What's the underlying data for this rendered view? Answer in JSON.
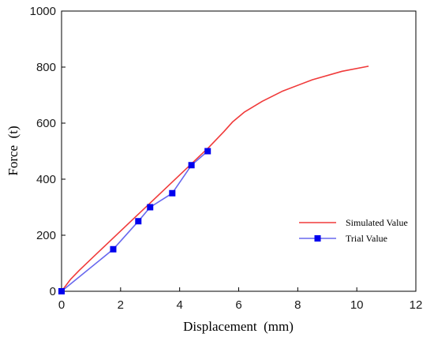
{
  "chart_data": {
    "type": "line",
    "title": "",
    "xlabel": "Displacement  (mm)",
    "ylabel": "Force  (t)",
    "xlim": [
      0,
      12
    ],
    "ylim": [
      0,
      1000
    ],
    "xticks": [
      0,
      2,
      4,
      6,
      8,
      10,
      12
    ],
    "yticks": [
      0,
      200,
      400,
      600,
      800,
      1000
    ],
    "grid": false,
    "legend_position": "lower-right",
    "series": [
      {
        "name": "Simulated Value",
        "color": "#f03a3a",
        "marker": "none",
        "x": [
          0,
          0.3,
          0.6,
          1.0,
          1.5,
          2.0,
          2.5,
          3.0,
          3.5,
          4.0,
          4.5,
          5.0,
          5.5,
          5.8,
          6.2,
          6.8,
          7.5,
          8.5,
          9.5,
          10.4
        ],
        "y": [
          0,
          42,
          75,
          115,
          165,
          215,
          265,
          315,
          365,
          415,
          465,
          515,
          570,
          605,
          640,
          678,
          715,
          755,
          785,
          803
        ]
      },
      {
        "name": "Trial Value",
        "color": "#0000ee",
        "line_color": "#6868ee",
        "marker": "square",
        "x": [
          0,
          1.75,
          2.6,
          3.0,
          3.75,
          4.4,
          4.95
        ],
        "y": [
          0,
          150,
          250,
          300,
          350,
          450,
          500
        ]
      }
    ]
  }
}
